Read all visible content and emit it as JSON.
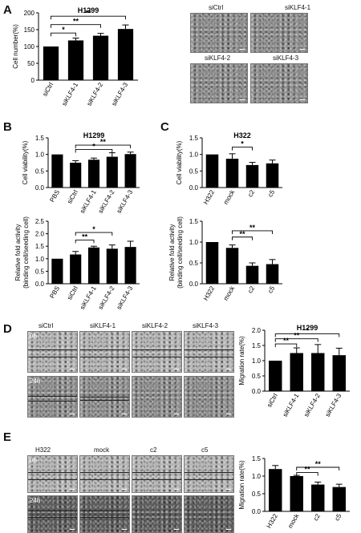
{
  "panels": {
    "A": "A",
    "B": "B",
    "C": "C",
    "D": "D",
    "E": "E"
  },
  "micrographs": {
    "A": [
      "siCtrl",
      "siKLF4-1",
      "siKLF4-2",
      "siKLF4-3"
    ],
    "D_cols": [
      "siCtrl",
      "siKLF4-1",
      "siKLF4-2",
      "siKLF4-3"
    ],
    "D_rows": [
      "0h",
      "24h"
    ],
    "E_cols": [
      "H322",
      "mock",
      "c2",
      "c5"
    ],
    "E_rows": [
      "0h",
      "24h"
    ]
  },
  "colors": {
    "bar": "#000000",
    "axis": "#000000"
  },
  "chart_data": [
    {
      "id": "A",
      "type": "bar",
      "title": "H1299",
      "ylabel": "Cell number(%)",
      "categories": [
        "siCtrl",
        "siKLF4-1",
        "siKLF4-2",
        "siKLF4-3"
      ],
      "values": [
        100,
        118,
        132,
        152
      ],
      "errors": [
        0,
        7,
        7,
        12
      ],
      "ylim": [
        0,
        200
      ],
      "yticks": [
        "0",
        "50",
        "100",
        "150",
        "200"
      ],
      "significance": [
        {
          "from": 0,
          "to": 1,
          "label": "*",
          "y": 140
        },
        {
          "from": 0,
          "to": 2,
          "label": "**",
          "y": 165
        },
        {
          "from": 0,
          "to": 3,
          "label": "**",
          "y": 190
        }
      ]
    },
    {
      "id": "B1",
      "type": "bar",
      "title": "H1299",
      "ylabel": "Cell viability(%)",
      "categories": [
        "PBS",
        "siCtrl",
        "siKLF4-1",
        "siKLF4-2",
        "siKLF4-3"
      ],
      "values": [
        1.0,
        0.75,
        0.84,
        0.93,
        1.01
      ],
      "errors": [
        0,
        0.06,
        0.05,
        0.12,
        0.06
      ],
      "ylim": [
        0,
        1.5
      ],
      "yticks": [
        "0.0",
        "0.5",
        "1.0",
        "1.5"
      ],
      "significance": [
        {
          "from": 1,
          "to": 3,
          "label": "*",
          "y": 1.15
        },
        {
          "from": 1,
          "to": 4,
          "label": "**",
          "y": 1.28
        }
      ]
    },
    {
      "id": "B2",
      "type": "bar",
      "title": "",
      "ylabel": "Relative fold activity\n(binding cell/seeding cell)",
      "categories": [
        "PBS",
        "siCtrl",
        "siKLF4-1",
        "siKLF4-2",
        "siKLF4-3"
      ],
      "values": [
        1.0,
        1.17,
        1.45,
        1.4,
        1.47
      ],
      "errors": [
        0,
        0.12,
        0.05,
        0.15,
        0.23
      ],
      "ylim": [
        0,
        2.5
      ],
      "yticks": [
        "0.0",
        "0.5",
        "1.0",
        "1.5",
        "2.0",
        "2.5"
      ],
      "significance": [
        {
          "from": 1,
          "to": 2,
          "label": "**",
          "y": 1.75
        },
        {
          "from": 1,
          "to": 3,
          "label": "*",
          "y": 2.05
        }
      ]
    },
    {
      "id": "C1",
      "type": "bar",
      "title": "H322",
      "ylabel": "Cell viability(%)",
      "categories": [
        "H322",
        "mock",
        "c2",
        "c5"
      ],
      "values": [
        1.0,
        0.87,
        0.68,
        0.73
      ],
      "errors": [
        0,
        0.15,
        0.08,
        0.1
      ],
      "ylim": [
        0,
        1.5
      ],
      "yticks": [
        "0.0",
        "0.5",
        "1.0",
        "1.5"
      ],
      "significance": [
        {
          "from": 1,
          "to": 2,
          "label": "*",
          "y": 1.22
        }
      ]
    },
    {
      "id": "C2",
      "type": "bar",
      "title": "",
      "ylabel": "Relative fold activity\n(binding cell/seeding cell)",
      "categories": [
        "H322",
        "mock",
        "c2",
        "c5"
      ],
      "values": [
        1.0,
        0.86,
        0.43,
        0.47
      ],
      "errors": [
        0,
        0.07,
        0.07,
        0.11
      ],
      "ylim": [
        0,
        1.5
      ],
      "yticks": [
        "0.0",
        "0.5",
        "1.0",
        "1.5"
      ],
      "significance": [
        {
          "from": 1,
          "to": 2,
          "label": "**",
          "y": 1.12
        },
        {
          "from": 1,
          "to": 3,
          "label": "**",
          "y": 1.27
        }
      ]
    },
    {
      "id": "D",
      "type": "bar",
      "title": "H1299",
      "ylabel": "Migration rate(%)",
      "categories": [
        "siCtrl",
        "siKLF4-1",
        "siKLF4-2",
        "siKLF4-3"
      ],
      "values": [
        1.0,
        1.25,
        1.25,
        1.18
      ],
      "errors": [
        0,
        0.17,
        0.28,
        0.23
      ],
      "ylim": [
        0,
        2.0
      ],
      "yticks": [
        "0.0",
        "0.5",
        "1.0",
        "1.5",
        "2.0"
      ],
      "significance": [
        {
          "from": 0,
          "to": 1,
          "label": "**",
          "y": 1.55
        },
        {
          "from": 0,
          "to": 2,
          "label": "**",
          "y": 1.72
        },
        {
          "from": 0,
          "to": 3,
          "label": "*",
          "y": 1.88
        }
      ]
    },
    {
      "id": "E",
      "type": "bar",
      "title": "",
      "ylabel": "Migration rate(%)",
      "categories": [
        "H322",
        "mock",
        "c2",
        "c5"
      ],
      "values": [
        1.2,
        1.0,
        0.76,
        0.69
      ],
      "errors": [
        0.1,
        0.02,
        0.07,
        0.08
      ],
      "ylim": [
        0,
        1.5
      ],
      "yticks": [
        "0.0",
        "0.5",
        "1.0",
        "1.5"
      ],
      "significance": [
        {
          "from": 1,
          "to": 2,
          "label": "**",
          "y": 1.1
        },
        {
          "from": 1,
          "to": 3,
          "label": "**",
          "y": 1.25
        }
      ]
    }
  ]
}
